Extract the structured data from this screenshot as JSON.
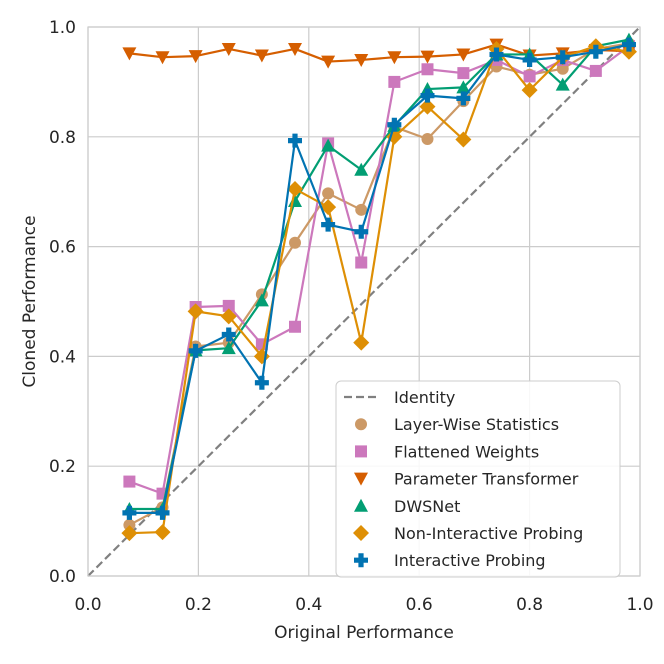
{
  "chart_data": {
    "type": "line",
    "title": "",
    "xlabel": "Original Performance",
    "ylabel": "Cloned Performance",
    "xlim": [
      0.0,
      1.0
    ],
    "ylim": [
      0.0,
      1.0
    ],
    "xticks": [
      0.0,
      0.2,
      0.4,
      0.6,
      0.8,
      1.0
    ],
    "yticks": [
      0.0,
      0.2,
      0.4,
      0.6,
      0.8,
      1.0
    ],
    "xtick_labels": [
      "0.0",
      "0.2",
      "0.4",
      "0.6",
      "0.8",
      "1.0"
    ],
    "ytick_labels": [
      "0.0",
      "0.2",
      "0.4",
      "0.6",
      "0.8",
      "1.0"
    ],
    "grid": true,
    "legend_position": "lower-right",
    "x": [
      0.075,
      0.135,
      0.195,
      0.255,
      0.315,
      0.375,
      0.435,
      0.495,
      0.555,
      0.615,
      0.68,
      0.74,
      0.8,
      0.86,
      0.92,
      0.98
    ],
    "identity": {
      "name": "Identity",
      "color": "#808080",
      "dash": "dashed"
    },
    "series": [
      {
        "name": "Layer-Wise Statistics",
        "color": "#cc9966",
        "marker": "circle",
        "values": [
          0.093,
          0.125,
          0.418,
          0.425,
          0.513,
          0.607,
          0.697,
          0.667,
          0.818,
          0.796,
          0.865,
          0.928,
          0.913,
          0.924,
          0.96,
          0.97
        ]
      },
      {
        "name": "Flattened Weights",
        "color": "#cc78bc",
        "marker": "square",
        "values": [
          0.172,
          0.15,
          0.49,
          0.492,
          0.422,
          0.454,
          0.788,
          0.571,
          0.9,
          0.923,
          0.916,
          0.94,
          0.91,
          0.94,
          0.92,
          0.965
        ]
      },
      {
        "name": "Parameter Transformer",
        "color": "#d55e00",
        "marker": "triangle-down",
        "values": [
          0.952,
          0.945,
          0.947,
          0.96,
          0.948,
          0.96,
          0.937,
          0.94,
          0.945,
          0.946,
          0.95,
          0.968,
          0.948,
          0.952,
          0.958,
          0.956
        ]
      },
      {
        "name": "DWSNet",
        "color": "#029e73",
        "marker": "triangle-up",
        "values": [
          0.122,
          0.122,
          0.411,
          0.415,
          0.502,
          0.683,
          0.784,
          0.74,
          0.82,
          0.887,
          0.89,
          0.95,
          0.95,
          0.895,
          0.965,
          0.977
        ]
      },
      {
        "name": "Non-Interactive Probing",
        "color": "#de8f05",
        "marker": "diamond",
        "values": [
          0.078,
          0.08,
          0.482,
          0.473,
          0.4,
          0.705,
          0.672,
          0.425,
          0.8,
          0.855,
          0.795,
          0.96,
          0.885,
          0.945,
          0.965,
          0.955
        ]
      },
      {
        "name": "Interactive Probing",
        "color": "#0173b2",
        "marker": "plus",
        "values": [
          0.115,
          0.115,
          0.41,
          0.44,
          0.352,
          0.793,
          0.64,
          0.627,
          0.822,
          0.875,
          0.87,
          0.95,
          0.94,
          0.945,
          0.955,
          0.968
        ]
      }
    ]
  }
}
